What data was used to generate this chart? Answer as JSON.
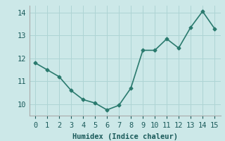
{
  "x": [
    0,
    1,
    2,
    3,
    4,
    5,
    6,
    7,
    8,
    9,
    10,
    11,
    12,
    13,
    14,
    15
  ],
  "y": [
    11.8,
    11.5,
    11.2,
    10.6,
    10.2,
    10.05,
    9.75,
    9.95,
    10.7,
    12.35,
    12.35,
    12.85,
    12.45,
    13.35,
    14.05,
    13.3
  ],
  "line_color": "#2a7a6e",
  "marker": "D",
  "marker_size": 2.5,
  "bg_color": "#cce8e8",
  "grid_color": "#aed4d4",
  "xlabel": "Humidex (Indice chaleur)",
  "xlabel_fontsize": 7.5,
  "tick_fontsize": 7.5,
  "ylim": [
    9.5,
    14.3
  ],
  "yticks": [
    10,
    11,
    12,
    13,
    14
  ],
  "xticks": [
    0,
    1,
    2,
    3,
    4,
    5,
    6,
    7,
    8,
    9,
    10,
    11,
    12,
    13,
    14,
    15
  ],
  "linewidth": 1.2,
  "spine_color": "#aaaaaa"
}
